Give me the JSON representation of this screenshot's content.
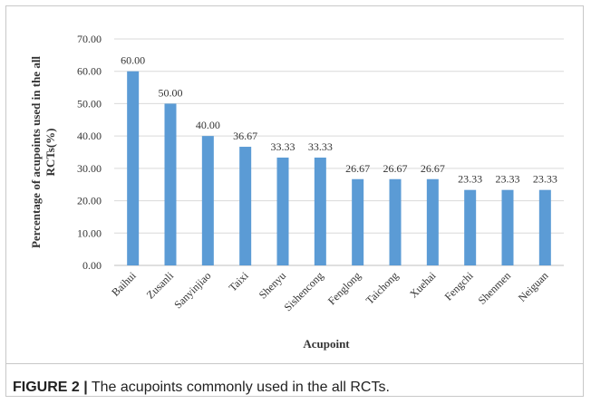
{
  "chart_data": {
    "type": "bar",
    "categories": [
      "Baihui",
      "Zusanli",
      "Sanyinjiao",
      "Taixi",
      "Shenyu",
      "Sishencong",
      "Fenglong",
      "Taichong",
      "Xuehai",
      "Fengchi",
      "Shenmen",
      "Neiguan"
    ],
    "values": [
      60.0,
      50.0,
      40.0,
      36.67,
      33.33,
      33.33,
      26.67,
      26.67,
      26.67,
      23.33,
      23.33,
      23.33
    ],
    "data_labels": [
      "60.00",
      "50.00",
      "40.00",
      "36.67",
      "33.33",
      "33.33",
      "26.67",
      "26.67",
      "26.67",
      "23.33",
      "23.33",
      "23.33"
    ],
    "yticks": [
      "0.00",
      "10.00",
      "20.00",
      "30.00",
      "40.00",
      "50.00",
      "60.00",
      "70.00"
    ],
    "ylim": [
      0,
      70
    ],
    "xlabel": "Acupoint",
    "ylabel": "Percentage of acupoints used in the all RCTs(%)",
    "title": "",
    "grid": true,
    "bar_color": "#5b9bd5"
  },
  "caption": {
    "figure_label": "FIGURE 2 |",
    "text": " The acupoints commonly used in the all RCTs."
  }
}
